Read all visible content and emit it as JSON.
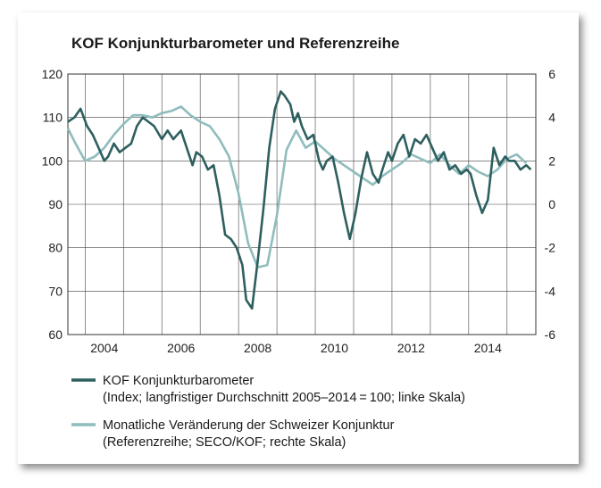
{
  "chart_data": {
    "type": "line",
    "title": "KOF Konjunkturbarometer und Referenzreihe",
    "x_ticks": [
      "2004",
      "2006",
      "2008",
      "2010",
      "2012",
      "2014"
    ],
    "y_left_ticks": [
      "120",
      "110",
      "100",
      "90",
      "80",
      "70",
      "60"
    ],
    "y_right_ticks": [
      "6",
      "4",
      "2",
      "0",
      "-2",
      "-4",
      "-6"
    ],
    "ylim_left": [
      60,
      120
    ],
    "ylim_right": [
      -6,
      6
    ],
    "xlim": [
      2003.55,
      2015.75
    ],
    "grid": true,
    "legend_position": "bottom",
    "colors": {
      "barometer": "#2e5f5f",
      "reference": "#8fbcbc"
    },
    "series": [
      {
        "name": "KOF Konjunkturbarometer",
        "note": "(Index; langfristiger Durchschnitt 2005–2014 = 100; linke Skala)",
        "axis": "left",
        "x": [
          2003.55,
          2003.72,
          2003.88,
          2004.05,
          2004.2,
          2004.35,
          2004.5,
          2004.6,
          2004.75,
          2004.9,
          2005.05,
          2005.2,
          2005.35,
          2005.5,
          2005.65,
          2005.8,
          2006.0,
          2006.15,
          2006.3,
          2006.5,
          2006.65,
          2006.8,
          2006.9,
          2007.05,
          2007.2,
          2007.35,
          2007.5,
          2007.65,
          2007.8,
          2007.95,
          2008.1,
          2008.2,
          2008.35,
          2008.5,
          2008.65,
          2008.8,
          2008.95,
          2009.1,
          2009.2,
          2009.35,
          2009.45,
          2009.55,
          2009.65,
          2009.8,
          2009.95,
          2010.1,
          2010.2,
          2010.3,
          2010.45,
          2010.6,
          2010.75,
          2010.9,
          2011.05,
          2011.2,
          2011.35,
          2011.5,
          2011.65,
          2011.75,
          2011.9,
          2012.0,
          2012.15,
          2012.3,
          2012.45,
          2012.6,
          2012.75,
          2012.9,
          2013.05,
          2013.2,
          2013.35,
          2013.5,
          2013.65,
          2013.8,
          2013.95,
          2014.05,
          2014.2,
          2014.35,
          2014.5,
          2014.65,
          2014.8,
          2014.95,
          2015.05,
          2015.2,
          2015.35,
          2015.5,
          2015.62
        ],
        "values": [
          109,
          110,
          112,
          108,
          106,
          103,
          100,
          101,
          104,
          102,
          103,
          104,
          108,
          110,
          109,
          108,
          105,
          107,
          105,
          107,
          103,
          99,
          102,
          101,
          98,
          99,
          92,
          83,
          82,
          80,
          76,
          68,
          66,
          77,
          89,
          103,
          112,
          116,
          115,
          113,
          109,
          111,
          108,
          105,
          106,
          100,
          98,
          100,
          101,
          95,
          88,
          82,
          88,
          96,
          102,
          97,
          95,
          98,
          102,
          100,
          104,
          106,
          101,
          105,
          104,
          106,
          103,
          100,
          102,
          98,
          99,
          97,
          98,
          97,
          92,
          88,
          91,
          103,
          99,
          101,
          100,
          100,
          98,
          99,
          98
        ]
      },
      {
        "name": "Monatliche Veränderung der Schweizer Konjunktur",
        "note": "(Referenzreihe; SECO/KOF; rechte Skala)",
        "axis": "right",
        "x": [
          2003.55,
          2003.75,
          2004.0,
          2004.25,
          2004.5,
          2004.75,
          2005.0,
          2005.25,
          2005.5,
          2005.75,
          2006.0,
          2006.25,
          2006.5,
          2006.75,
          2007.0,
          2007.25,
          2007.5,
          2007.75,
          2008.0,
          2008.25,
          2008.5,
          2008.75,
          2009.0,
          2009.25,
          2009.5,
          2009.75,
          2010.0,
          2010.25,
          2010.5,
          2010.75,
          2011.0,
          2011.25,
          2011.5,
          2011.75,
          2012.0,
          2012.25,
          2012.5,
          2012.75,
          2013.0,
          2013.25,
          2013.5,
          2013.75,
          2014.0,
          2014.25,
          2014.5,
          2014.75,
          2015.0,
          2015.25,
          2015.5
        ],
        "values": [
          3.5,
          2.8,
          2.0,
          2.2,
          2.6,
          3.2,
          3.7,
          4.1,
          4.1,
          4.0,
          4.2,
          4.3,
          4.5,
          4.1,
          3.8,
          3.6,
          3.0,
          2.2,
          0.5,
          -1.8,
          -2.9,
          -2.8,
          -0.5,
          2.5,
          3.4,
          2.6,
          2.9,
          2.5,
          2.1,
          1.8,
          1.5,
          1.2,
          0.9,
          1.3,
          1.6,
          1.9,
          2.3,
          2.1,
          1.9,
          2.3,
          1.8,
          1.4,
          1.8,
          1.5,
          1.3,
          1.6,
          2.1,
          2.3,
          1.9
        ]
      }
    ]
  }
}
